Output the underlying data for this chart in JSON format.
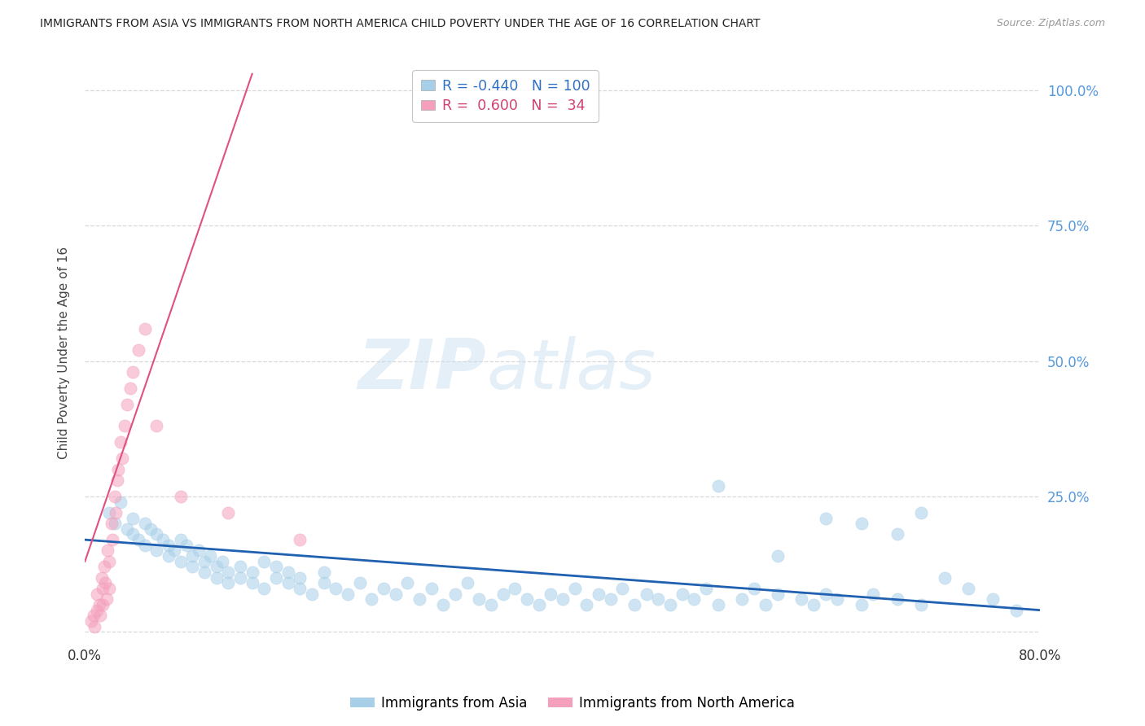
{
  "title": "IMMIGRANTS FROM ASIA VS IMMIGRANTS FROM NORTH AMERICA CHILD POVERTY UNDER THE AGE OF 16 CORRELATION CHART",
  "source": "Source: ZipAtlas.com",
  "ylabel": "Child Poverty Under the Age of 16",
  "legend_label_blue": "Immigrants from Asia",
  "legend_label_pink": "Immigrants from North America",
  "R_blue": -0.44,
  "N_blue": 100,
  "R_pink": 0.6,
  "N_pink": 34,
  "xlim": [
    0.0,
    0.8
  ],
  "ylim": [
    -0.02,
    1.05
  ],
  "blue_color": "#a8cfe8",
  "pink_color": "#f4a0bc",
  "blue_line_color": "#2060b0",
  "pink_line_color": "#e05080",
  "background_color": "#ffffff",
  "grid_color": "#d8d8d8",
  "blue_scatter_x": [
    0.02,
    0.025,
    0.03,
    0.035,
    0.04,
    0.04,
    0.045,
    0.05,
    0.05,
    0.055,
    0.06,
    0.06,
    0.065,
    0.07,
    0.07,
    0.075,
    0.08,
    0.08,
    0.085,
    0.09,
    0.09,
    0.095,
    0.1,
    0.1,
    0.105,
    0.11,
    0.11,
    0.115,
    0.12,
    0.12,
    0.13,
    0.13,
    0.14,
    0.14,
    0.15,
    0.15,
    0.16,
    0.16,
    0.17,
    0.17,
    0.18,
    0.18,
    0.19,
    0.2,
    0.2,
    0.21,
    0.22,
    0.23,
    0.24,
    0.25,
    0.26,
    0.27,
    0.28,
    0.29,
    0.3,
    0.31,
    0.32,
    0.33,
    0.34,
    0.35,
    0.36,
    0.37,
    0.38,
    0.39,
    0.4,
    0.41,
    0.42,
    0.43,
    0.44,
    0.45,
    0.46,
    0.47,
    0.48,
    0.49,
    0.5,
    0.51,
    0.52,
    0.53,
    0.55,
    0.56,
    0.57,
    0.58,
    0.6,
    0.61,
    0.62,
    0.63,
    0.65,
    0.66,
    0.68,
    0.7,
    0.53,
    0.58,
    0.62,
    0.65,
    0.68,
    0.7,
    0.72,
    0.74,
    0.76,
    0.78
  ],
  "blue_scatter_y": [
    0.22,
    0.2,
    0.24,
    0.19,
    0.18,
    0.21,
    0.17,
    0.2,
    0.16,
    0.19,
    0.18,
    0.15,
    0.17,
    0.16,
    0.14,
    0.15,
    0.17,
    0.13,
    0.16,
    0.14,
    0.12,
    0.15,
    0.13,
    0.11,
    0.14,
    0.12,
    0.1,
    0.13,
    0.11,
    0.09,
    0.12,
    0.1,
    0.11,
    0.09,
    0.13,
    0.08,
    0.1,
    0.12,
    0.09,
    0.11,
    0.08,
    0.1,
    0.07,
    0.09,
    0.11,
    0.08,
    0.07,
    0.09,
    0.06,
    0.08,
    0.07,
    0.09,
    0.06,
    0.08,
    0.05,
    0.07,
    0.09,
    0.06,
    0.05,
    0.07,
    0.08,
    0.06,
    0.05,
    0.07,
    0.06,
    0.08,
    0.05,
    0.07,
    0.06,
    0.08,
    0.05,
    0.07,
    0.06,
    0.05,
    0.07,
    0.06,
    0.08,
    0.05,
    0.06,
    0.08,
    0.05,
    0.07,
    0.06,
    0.05,
    0.07,
    0.06,
    0.05,
    0.07,
    0.06,
    0.05,
    0.27,
    0.14,
    0.21,
    0.2,
    0.18,
    0.22,
    0.1,
    0.08,
    0.06,
    0.04
  ],
  "pink_scatter_x": [
    0.005,
    0.007,
    0.008,
    0.01,
    0.01,
    0.012,
    0.013,
    0.014,
    0.015,
    0.015,
    0.016,
    0.017,
    0.018,
    0.019,
    0.02,
    0.02,
    0.022,
    0.023,
    0.025,
    0.026,
    0.027,
    0.028,
    0.03,
    0.031,
    0.033,
    0.035,
    0.038,
    0.04,
    0.045,
    0.05,
    0.06,
    0.08,
    0.12,
    0.18
  ],
  "pink_scatter_y": [
    0.02,
    0.03,
    0.01,
    0.04,
    0.07,
    0.05,
    0.03,
    0.1,
    0.08,
    0.05,
    0.12,
    0.09,
    0.06,
    0.15,
    0.13,
    0.08,
    0.2,
    0.17,
    0.25,
    0.22,
    0.28,
    0.3,
    0.35,
    0.32,
    0.38,
    0.42,
    0.45,
    0.48,
    0.52,
    0.56,
    0.38,
    0.25,
    0.22,
    0.17
  ],
  "blue_line_x": [
    0.0,
    0.8
  ],
  "blue_line_y": [
    0.17,
    0.04
  ],
  "pink_line_x": [
    0.0,
    0.14
  ],
  "pink_line_y": [
    0.13,
    1.03
  ]
}
